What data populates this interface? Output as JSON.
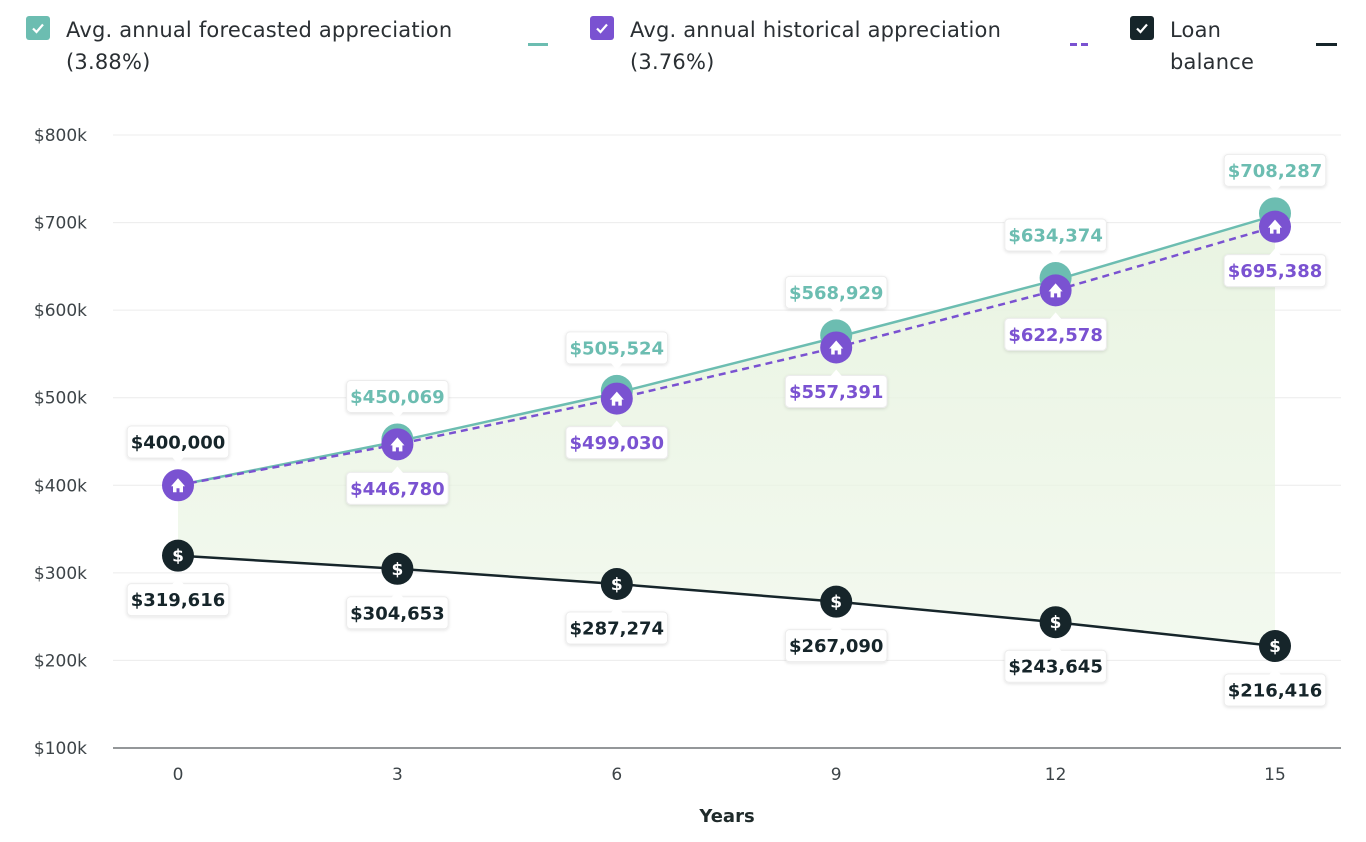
{
  "legend": [
    {
      "label_line1": "Avg. annual forecasted appreciation",
      "label_line2": "(3.88%)",
      "color": "#6cbdb1",
      "checked": true,
      "line_style": "solid"
    },
    {
      "label_line1": "Avg. annual historical appreciation",
      "label_line2": "(3.76%)",
      "color": "#7a52d1",
      "checked": true,
      "line_style": "dashed"
    },
    {
      "label_line1": "Loan",
      "label_line2": "balance",
      "color": "#16252a",
      "checked": true,
      "line_style": "solid"
    }
  ],
  "chart_data": {
    "type": "line",
    "title": "",
    "xlabel": "Years",
    "ylabel": "",
    "x": [
      0,
      3,
      6,
      9,
      12,
      15
    ],
    "ylim": [
      100000,
      800000
    ],
    "yticks": [
      100000,
      200000,
      300000,
      400000,
      500000,
      600000,
      700000,
      800000
    ],
    "ytick_labels": [
      "$100k",
      "$200k",
      "$300k",
      "$400k",
      "$500k",
      "$600k",
      "$700k",
      "$800k"
    ],
    "xtick_labels": [
      "0",
      "3",
      "6",
      "9",
      "12",
      "15"
    ],
    "grid": true,
    "series": [
      {
        "name": "Avg. annual forecasted appreciation (3.88%)",
        "color": "#6cbdb1",
        "style": "solid",
        "values": [
          400000,
          450069,
          505524,
          568929,
          634374,
          708287
        ],
        "labels": [
          "$400,000",
          "$450,069",
          "$505,524",
          "$568,929",
          "$634,374",
          "$708,287"
        ]
      },
      {
        "name": "Avg. annual historical appreciation (3.76%)",
        "color": "#7a52d1",
        "style": "dashed",
        "values": [
          400000,
          446780,
          499030,
          557391,
          622578,
          695388
        ],
        "labels": [
          "",
          "$446,780",
          "$499,030",
          "$557,391",
          "$622,578",
          "$695,388"
        ]
      },
      {
        "name": "Loan balance",
        "color": "#16252a",
        "style": "solid",
        "values": [
          319616,
          304653,
          287274,
          267090,
          243645,
          216416
        ],
        "labels": [
          "$319,616",
          "$304,653",
          "$287,274",
          "$267,090",
          "$243,645",
          "$216,416"
        ]
      }
    ],
    "start_label": "$400,000",
    "start_label_color": "#16252a",
    "fill_color": "#e9f4e2"
  }
}
